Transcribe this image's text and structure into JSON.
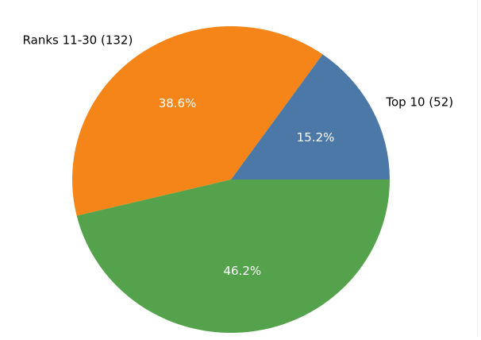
{
  "chart_data": {
    "type": "pie",
    "title": "",
    "slices": [
      {
        "label": "Top 10 (52)",
        "value": 52,
        "percent_label": "15.2%",
        "color": "#4c78a8"
      },
      {
        "label": "Ranks 11-30 (132)",
        "value": 132,
        "percent_label": "38.6%",
        "color": "#f58518"
      },
      {
        "label": "",
        "value": 158,
        "percent_label": "46.2%",
        "color": "#54a24b"
      }
    ],
    "start_angle_deg": 0,
    "direction": "counterclockwise",
    "legend": "none"
  }
}
